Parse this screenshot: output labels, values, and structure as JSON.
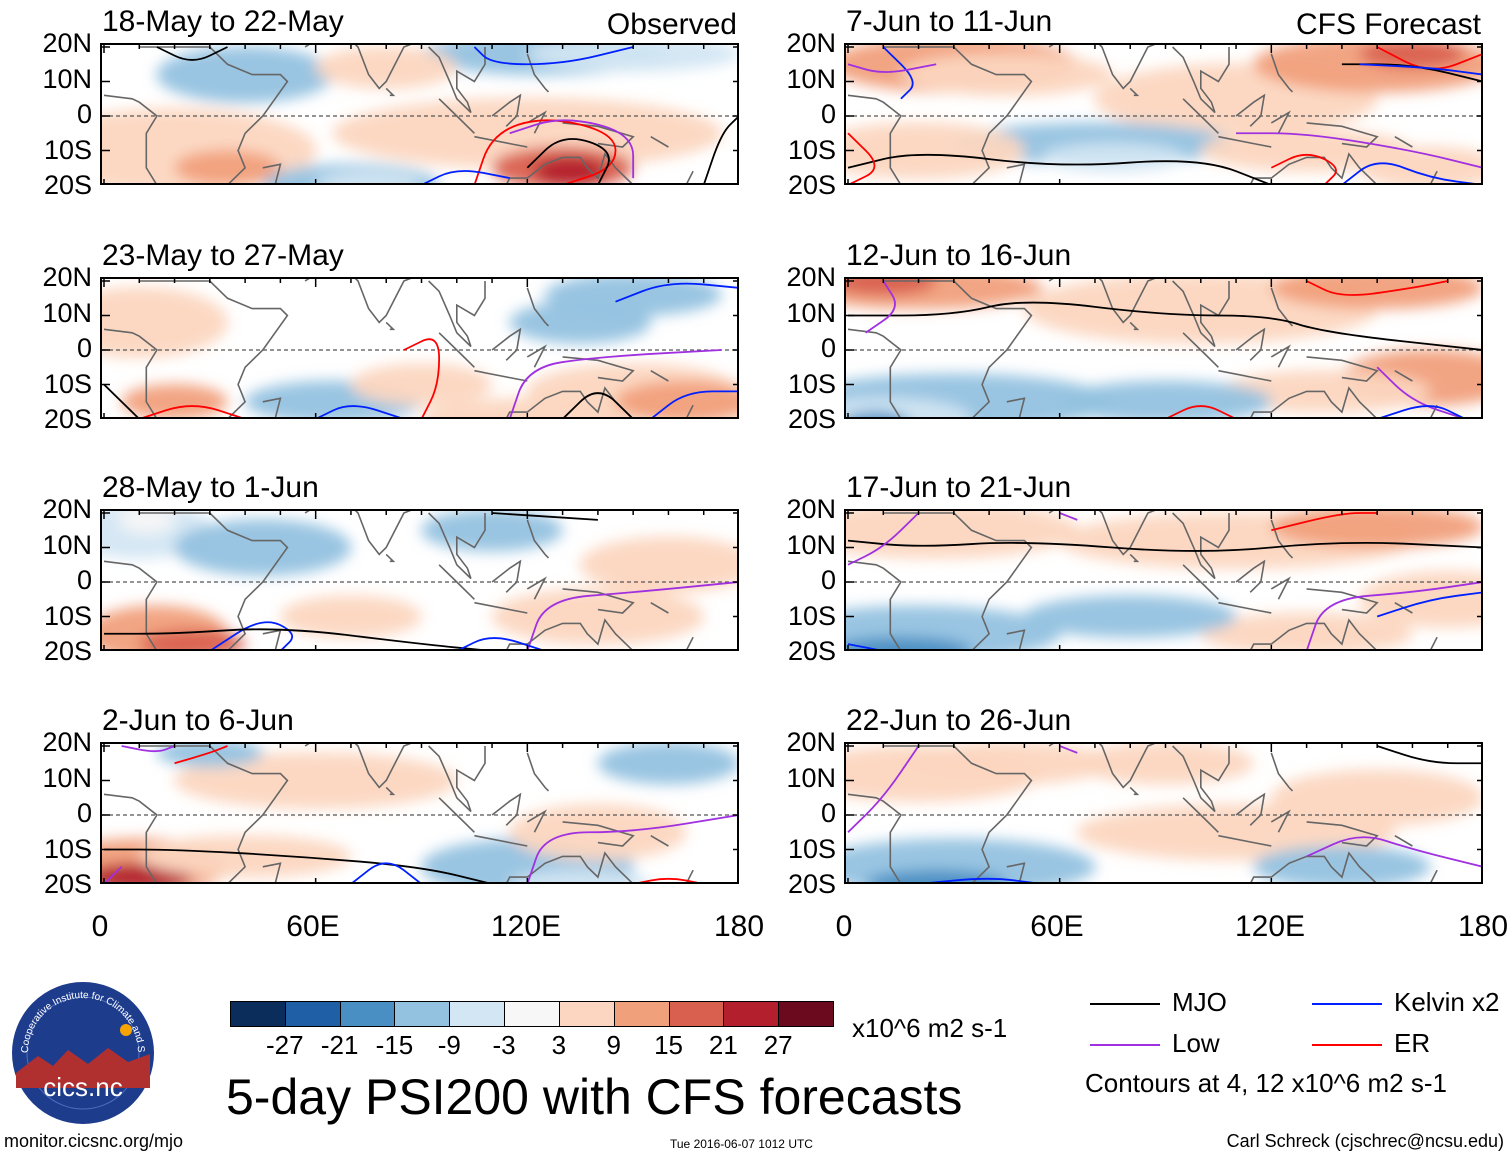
{
  "chart_data": {
    "type": "heatmap",
    "title": "5-day PSI200 with CFS forecasts",
    "units": "x10^6 m2 s-1",
    "columns": [
      "Observed",
      "CFS Forecast"
    ],
    "lat_labels": [
      "20N",
      "10N",
      "0",
      "10S",
      "20S"
    ],
    "lon_labels": [
      "0",
      "60E",
      "120E",
      "180"
    ],
    "lat_range": [
      -20,
      20
    ],
    "lon_range": [
      0,
      180
    ],
    "panels": [
      {
        "title": "18-May to 22-May",
        "side": "Observed",
        "column": 0,
        "row": 0
      },
      {
        "title": "23-May to 27-May",
        "side": "",
        "column": 0,
        "row": 1
      },
      {
        "title": "28-May to 1-Jun",
        "side": "",
        "column": 0,
        "row": 2
      },
      {
        "title": "2-Jun to 6-Jun",
        "side": "",
        "column": 0,
        "row": 3
      },
      {
        "title": "7-Jun to 11-Jun",
        "side": "CFS Forecast",
        "column": 1,
        "row": 0
      },
      {
        "title": "12-Jun to 16-Jun",
        "side": "",
        "column": 1,
        "row": 1
      },
      {
        "title": "17-Jun to 21-Jun",
        "side": "",
        "column": 1,
        "row": 2
      },
      {
        "title": "22-Jun to 26-Jun",
        "side": "",
        "column": 1,
        "row": 3
      }
    ],
    "colorbar": {
      "labels": [
        "-27",
        "-21",
        "-15",
        "-9",
        "-3",
        "3",
        "9",
        "15",
        "21",
        "27"
      ],
      "colors": [
        "#0b2d5c",
        "#1f5fa6",
        "#4a8fc4",
        "#93c2e0",
        "#d3e6f3",
        "#f7f7f7",
        "#fcd6c0",
        "#f1a07c",
        "#d9604f",
        "#b31f2c",
        "#6b0a1f"
      ]
    },
    "legend": {
      "entries": [
        {
          "label": "MJO",
          "color": "#000000"
        },
        {
          "label": "Kelvin x2",
          "color": "#0020ff"
        },
        {
          "label": "Low",
          "color": "#a030e0"
        },
        {
          "label": "ER",
          "color": "#ff0000"
        }
      ],
      "note": "Contours at 4, 12 x10^6 m2 s-1"
    }
  },
  "footer": {
    "left": "monitor.cicsnc.org/mjo",
    "center": "Tue 2016-06-07 1012 UTC",
    "right": "Carl Schreck (cjschrec@ncsu.edu)"
  },
  "logo": {
    "text": "cics.nc",
    "ring_text": "Cooperative Institute for Climate and Satellites"
  }
}
